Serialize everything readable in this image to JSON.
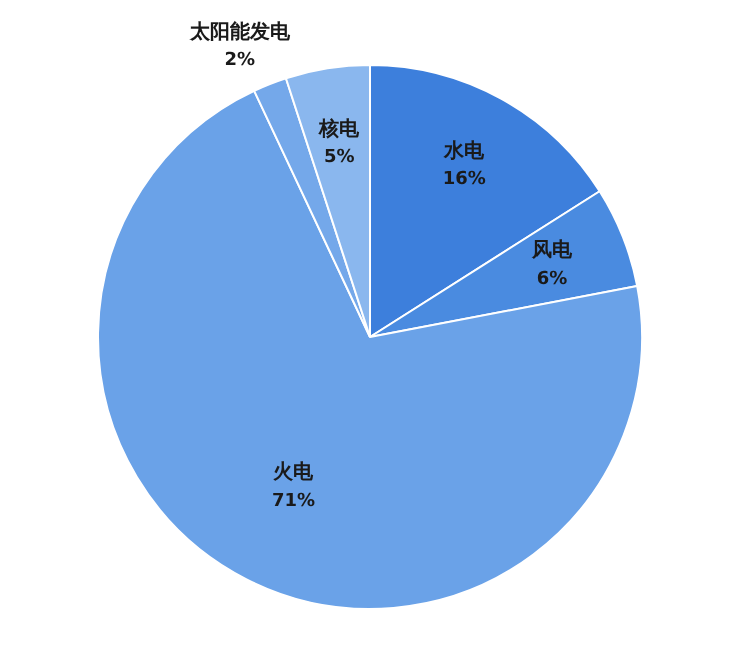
{
  "chart_data": {
    "type": "pie",
    "categories": [
      "水电",
      "风电",
      "火电",
      "太阳能发电",
      "核电"
    ],
    "values": [
      16,
      6,
      71,
      2,
      5
    ],
    "value_labels": [
      "16%",
      "6%",
      "71%",
      "2%",
      "5%"
    ],
    "colors": [
      "#3d7fdc",
      "#4a8be0",
      "#6aa2e8",
      "#74a8ea",
      "#8ab7ee"
    ],
    "legend": false
  }
}
